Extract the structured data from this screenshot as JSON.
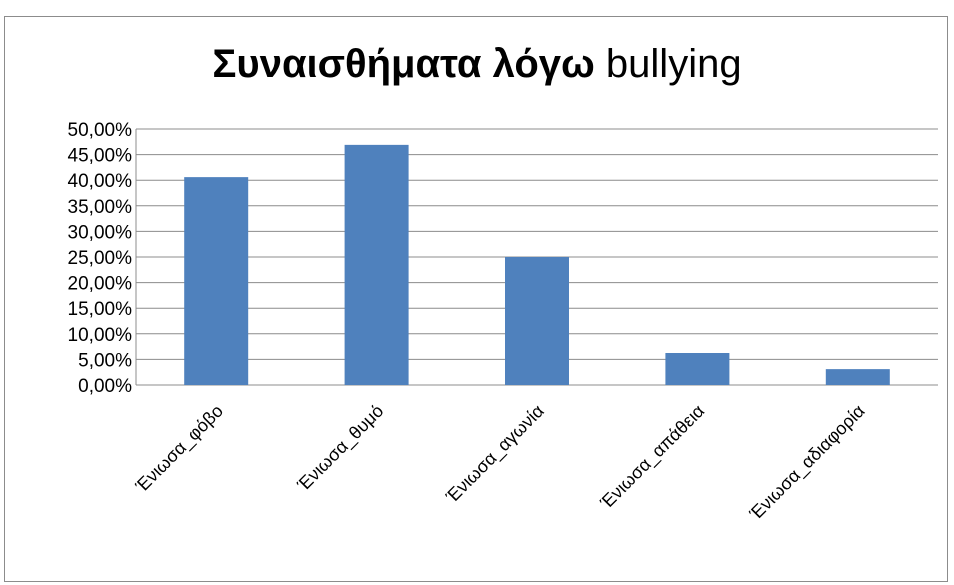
{
  "chart_data": {
    "type": "bar",
    "title_bold": "Συναισθήματα λόγω",
    "title_normal": "bullying",
    "categories": [
      "Ένιωσα_φόβο",
      "Ένιωσα_θυμό",
      "Ένιωσα_αγωνία",
      "Ένιωσα_απάθεια",
      "Ένιωσα_αδιαφορία"
    ],
    "values": [
      40.6,
      46.9,
      25.0,
      6.25,
      3.1
    ],
    "yticks": [
      "0,00%",
      "5,00%",
      "10,00%",
      "15,00%",
      "20,00%",
      "25,00%",
      "30,00%",
      "35,00%",
      "40,00%",
      "45,00%",
      "50,00%"
    ],
    "ylim": [
      0,
      50
    ],
    "grid": true,
    "bar_color": "#4f81bd",
    "grid_color": "#8c8c8c"
  }
}
